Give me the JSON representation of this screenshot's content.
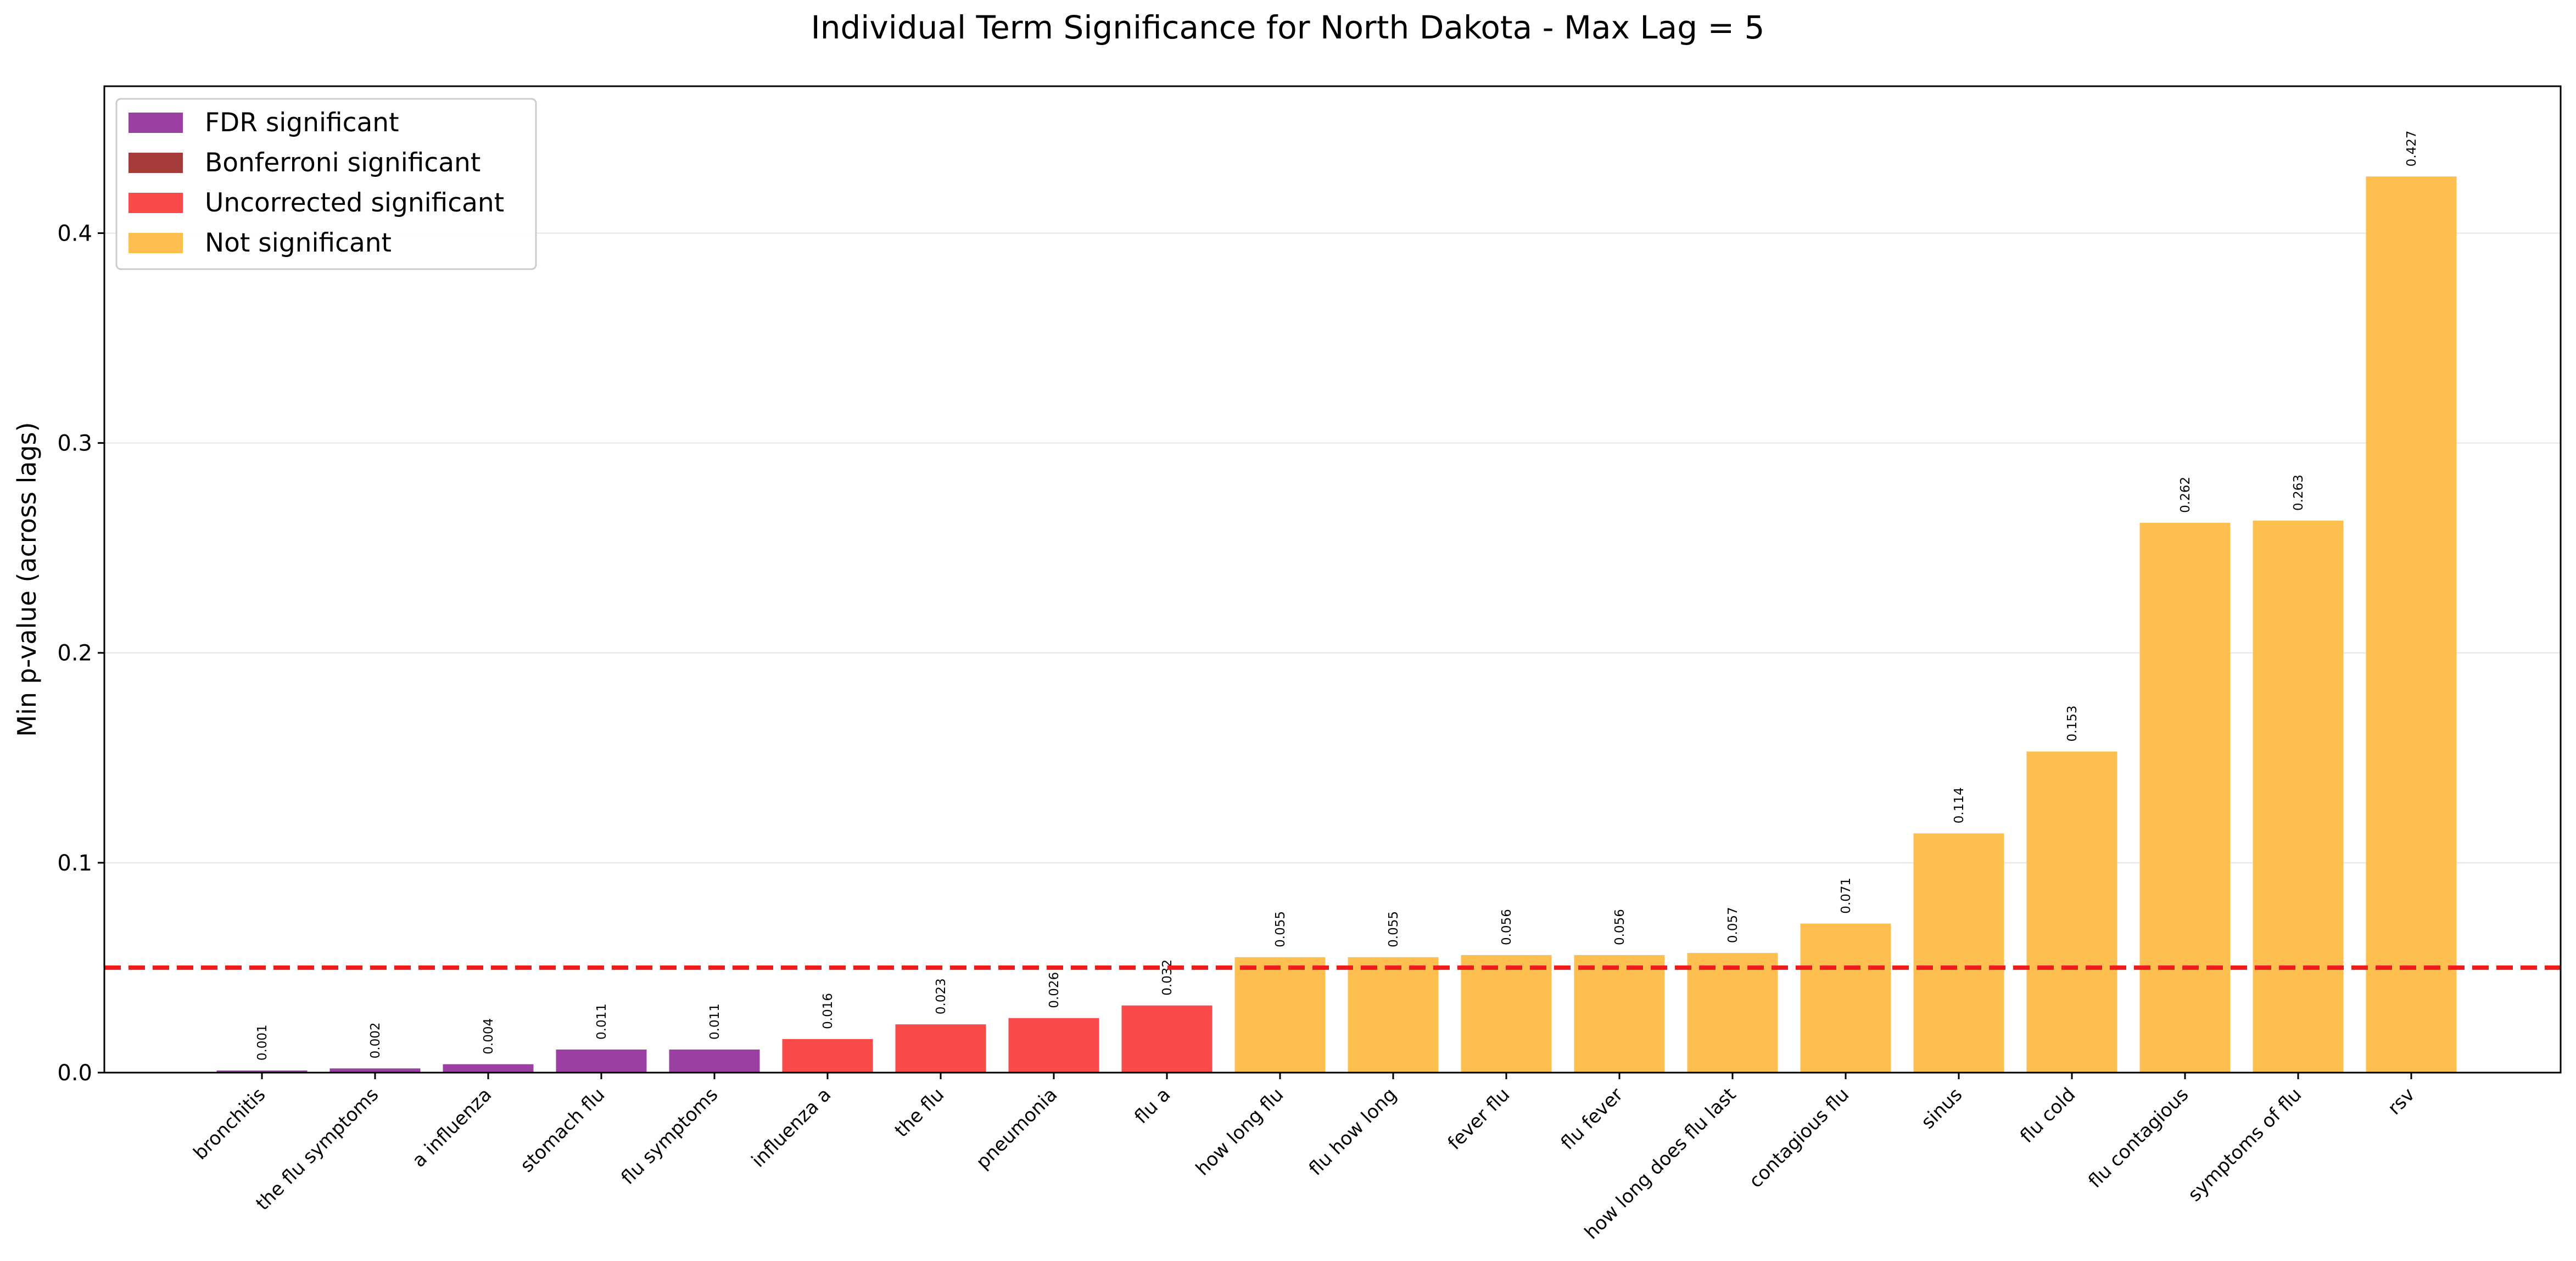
{
  "chart_data": {
    "type": "bar",
    "title": "Individual Term Significance for North Dakota - Max Lag = 5",
    "xlabel": "",
    "ylabel": "Min p-value (across lags)",
    "ylim": [
      0,
      0.47
    ],
    "yticks": [
      0.0,
      0.1,
      0.2,
      0.3,
      0.4
    ],
    "ytick_labels": [
      "0.0",
      "0.1",
      "0.2",
      "0.3",
      "0.4"
    ],
    "grid": "y-axis, light",
    "legend_position": "top-left",
    "threshold": {
      "value": 0.05,
      "color": "#ee1c1c",
      "style": "dashed"
    },
    "legend": [
      {
        "label": "FDR significant",
        "color": "#9b3fa3"
      },
      {
        "label": "Bonferroni significant",
        "color": "#a43a3a"
      },
      {
        "label": "Uncorrected significant",
        "color": "#fa4a4a"
      },
      {
        "label": "Not significant",
        "color": "#fdbf4f"
      }
    ],
    "categories": [
      "bronchitis",
      "the flu symptoms",
      "a influenza",
      "stomach flu",
      "flu symptoms",
      "influenza a",
      "the flu",
      "pneumonia",
      "flu a",
      "how long flu",
      "flu how long",
      "fever flu",
      "flu fever",
      "how long does flu last",
      "contagious flu",
      "sinus",
      "flu cold",
      "flu contagious",
      "symptoms of flu",
      "rsv"
    ],
    "values": [
      0.001,
      0.002,
      0.004,
      0.011,
      0.011,
      0.016,
      0.023,
      0.026,
      0.032,
      0.055,
      0.055,
      0.056,
      0.056,
      0.057,
      0.071,
      0.114,
      0.153,
      0.262,
      0.263,
      0.427
    ],
    "value_labels": [
      "0.001",
      "0.002",
      "0.004",
      "0.011",
      "0.011",
      "0.016",
      "0.023",
      "0.026",
      "0.032",
      "0.055",
      "0.055",
      "0.056",
      "0.056",
      "0.057",
      "0.071",
      "0.114",
      "0.153",
      "0.262",
      "0.263",
      "0.427"
    ],
    "significance": [
      "FDR significant",
      "FDR significant",
      "FDR significant",
      "FDR significant",
      "FDR significant",
      "Uncorrected significant",
      "Uncorrected significant",
      "Uncorrected significant",
      "Uncorrected significant",
      "Not significant",
      "Not significant",
      "Not significant",
      "Not significant",
      "Not significant",
      "Not significant",
      "Not significant",
      "Not significant",
      "Not significant",
      "Not significant",
      "Not significant"
    ]
  }
}
